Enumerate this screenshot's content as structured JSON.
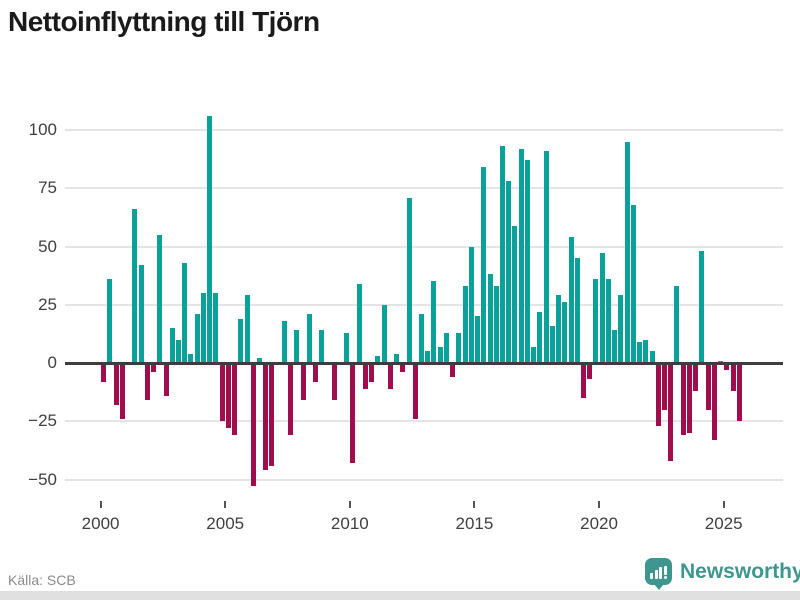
{
  "title": "Nettoinflyttning till Tjörn",
  "source": "Källa: SCB",
  "branding": {
    "logo_text": "Newsworthy"
  },
  "colors": {
    "positive": "#0aa19a",
    "negative": "#a00d4d",
    "grid": "#e4e4e4",
    "zero_line": "#3d3d3d",
    "axis_text": "#404040",
    "title_text": "#1a1a1a",
    "source_text": "#8a8a8a",
    "brand_teal": "#3e968f",
    "footer_strip": "#e0e0e0"
  },
  "chart_data": {
    "type": "bar",
    "title": "Nettoinflyttning till Tjörn",
    "xlabel": "",
    "ylabel": "",
    "frequency": "quarterly",
    "start": "2000 Q1",
    "end": "2025 Q3",
    "ylim": [
      -60,
      110
    ],
    "grid": true,
    "y_ticks": [
      100,
      75,
      50,
      25,
      0,
      -25,
      -50
    ],
    "y_tick_labels": [
      "100",
      "75",
      "50",
      "25",
      "0",
      "−25",
      "−50"
    ],
    "x_tick_years": [
      2000,
      2005,
      2010,
      2015,
      2020,
      2025
    ],
    "x_tick_labels": [
      "2000",
      "2005",
      "2010",
      "2015",
      "2020",
      "2025"
    ],
    "values": [
      -8,
      36,
      -18,
      -24,
      0,
      66,
      42,
      -16,
      -4,
      55,
      -14,
      15,
      10,
      43,
      4,
      21,
      30,
      106,
      30,
      -25,
      -28,
      -31,
      19,
      29,
      -53,
      2,
      -46,
      -44,
      0,
      18,
      -31,
      14,
      -16,
      21,
      -8,
      14,
      0,
      -16,
      0,
      13,
      -43,
      34,
      -11,
      -8,
      3,
      25,
      -11,
      4,
      -4,
      71,
      -24,
      21,
      5,
      35,
      7,
      13,
      -6,
      13,
      33,
      50,
      20,
      84,
      38,
      33,
      93,
      78,
      59,
      92,
      87,
      7,
      22,
      91,
      16,
      29,
      26,
      54,
      45,
      -15,
      -7,
      36,
      47,
      36,
      14,
      29,
      95,
      68,
      9,
      10,
      5,
      -27,
      -20,
      -42,
      33,
      -31,
      -30,
      -12,
      48,
      -20,
      -33,
      1,
      -3,
      -12,
      -25
    ]
  }
}
